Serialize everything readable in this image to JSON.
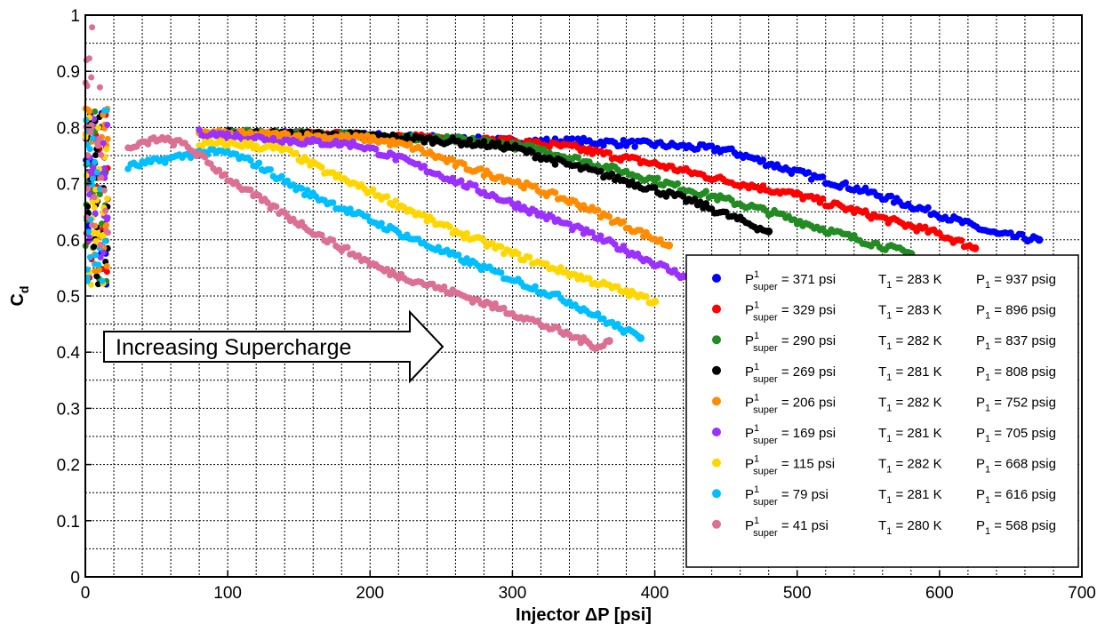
{
  "chart_data": {
    "type": "scatter",
    "xlabel": "Injector ΔP [psi]",
    "ylabel": {
      "main": "C",
      "sub": "d"
    },
    "xlim": [
      0,
      700
    ],
    "ylim": [
      0,
      1
    ],
    "xticks": [
      0,
      100,
      200,
      300,
      400,
      500,
      600,
      700
    ],
    "yticks": [
      0,
      0.1,
      0.2,
      0.3,
      0.4,
      0.5,
      0.6,
      0.7,
      0.8,
      0.9,
      1
    ],
    "grid": true,
    "legend_position": "bottom-right",
    "annotation": "Increasing Supercharge",
    "series": [
      {
        "psuper": "371 psi",
        "T1": "283 K",
        "P1": "937 psig",
        "color": "#0000ff",
        "points": [
          [
            100,
            0.79
          ],
          [
            200,
            0.785
          ],
          [
            300,
            0.775
          ],
          [
            350,
            0.775
          ],
          [
            400,
            0.77
          ],
          [
            450,
            0.76
          ],
          [
            500,
            0.72
          ],
          [
            550,
            0.685
          ],
          [
            600,
            0.645
          ],
          [
            640,
            0.61
          ],
          [
            670,
            0.6
          ]
        ]
      },
      {
        "psuper": "329 psi",
        "T1": "283 K",
        "P1": "896 psig",
        "color": "#ff0000",
        "points": [
          [
            100,
            0.79
          ],
          [
            200,
            0.785
          ],
          [
            300,
            0.775
          ],
          [
            340,
            0.765
          ],
          [
            400,
            0.735
          ],
          [
            450,
            0.705
          ],
          [
            500,
            0.68
          ],
          [
            550,
            0.645
          ],
          [
            600,
            0.61
          ],
          [
            625,
            0.585
          ]
        ]
      },
      {
        "psuper": "290 psi",
        "T1": "282 K",
        "P1": "837 psig",
        "color": "#228b22",
        "points": [
          [
            100,
            0.79
          ],
          [
            200,
            0.785
          ],
          [
            280,
            0.775
          ],
          [
            320,
            0.76
          ],
          [
            380,
            0.72
          ],
          [
            430,
            0.685
          ],
          [
            480,
            0.65
          ],
          [
            530,
            0.61
          ],
          [
            580,
            0.575
          ]
        ]
      },
      {
        "psuper": "269 psi",
        "T1": "281 K",
        "P1": "808 psig",
        "color": "#000000",
        "points": [
          [
            100,
            0.79
          ],
          [
            200,
            0.785
          ],
          [
            260,
            0.775
          ],
          [
            300,
            0.765
          ],
          [
            330,
            0.74
          ],
          [
            380,
            0.705
          ],
          [
            430,
            0.665
          ],
          [
            480,
            0.615
          ]
        ]
      },
      {
        "psuper": "206 psi",
        "T1": "282 K",
        "P1": "752 psig",
        "color": "#ff8c00",
        "points": [
          [
            80,
            0.79
          ],
          [
            150,
            0.785
          ],
          [
            200,
            0.78
          ],
          [
            230,
            0.765
          ],
          [
            260,
            0.735
          ],
          [
            300,
            0.705
          ],
          [
            350,
            0.66
          ],
          [
            380,
            0.625
          ],
          [
            410,
            0.59
          ]
        ]
      },
      {
        "psuper": "169 psi",
        "T1": "281 K",
        "P1": "705 psig",
        "color": "#9b30ff",
        "points": [
          [
            80,
            0.79
          ],
          [
            150,
            0.775
          ],
          [
            190,
            0.77
          ],
          [
            220,
            0.745
          ],
          [
            260,
            0.705
          ],
          [
            300,
            0.665
          ],
          [
            350,
            0.615
          ],
          [
            390,
            0.57
          ],
          [
            420,
            0.535
          ]
        ]
      },
      {
        "psuper": "115 psi",
        "T1": "282 K",
        "P1": "668 psig",
        "color": "#ffd700",
        "points": [
          [
            80,
            0.77
          ],
          [
            110,
            0.77
          ],
          [
            140,
            0.76
          ],
          [
            170,
            0.72
          ],
          [
            210,
            0.675
          ],
          [
            250,
            0.625
          ],
          [
            300,
            0.575
          ],
          [
            340,
            0.54
          ],
          [
            370,
            0.515
          ],
          [
            400,
            0.49
          ]
        ]
      },
      {
        "psuper": "79 psi",
        "T1": "281 K",
        "P1": "616 psig",
        "color": "#00bfff",
        "points": [
          [
            30,
            0.73
          ],
          [
            60,
            0.745
          ],
          [
            80,
            0.755
          ],
          [
            100,
            0.755
          ],
          [
            120,
            0.735
          ],
          [
            150,
            0.69
          ],
          [
            200,
            0.635
          ],
          [
            250,
            0.58
          ],
          [
            300,
            0.53
          ],
          [
            340,
            0.49
          ],
          [
            370,
            0.45
          ],
          [
            390,
            0.425
          ]
        ]
      },
      {
        "psuper": "41 psi",
        "T1": "280 K",
        "P1": "568 psig",
        "color": "#db7093",
        "points": [
          [
            30,
            0.76
          ],
          [
            50,
            0.78
          ],
          [
            70,
            0.77
          ],
          [
            100,
            0.71
          ],
          [
            130,
            0.66
          ],
          [
            170,
            0.6
          ],
          [
            210,
            0.545
          ],
          [
            260,
            0.505
          ],
          [
            300,
            0.47
          ],
          [
            340,
            0.43
          ],
          [
            360,
            0.41
          ],
          [
            368,
            0.42
          ]
        ]
      }
    ]
  }
}
